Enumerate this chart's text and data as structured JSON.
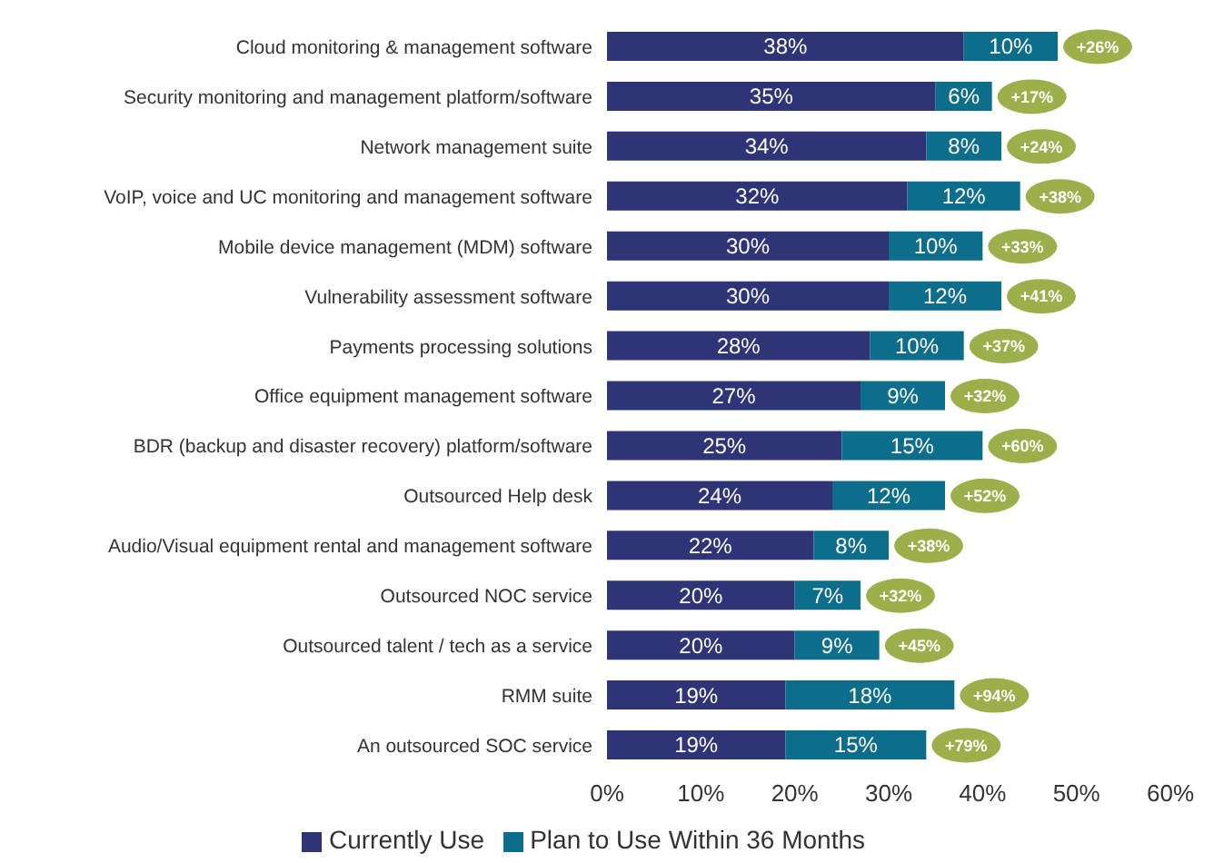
{
  "chart_data": {
    "type": "bar",
    "orientation": "horizontal",
    "stacked": true,
    "grid": false,
    "legend": "bottom",
    "categories": [
      "Cloud monitoring & management software",
      "Security monitoring and management platform/software",
      "Network management suite",
      "VoIP, voice and UC monitoring and management software",
      "Mobile device management (MDM) software",
      "Vulnerability assessment software",
      "Payments processing solutions",
      "Office equipment management software",
      "BDR (backup and disaster recovery) platform/software",
      "Outsourced Help desk",
      "Audio/Visual equipment rental and management software",
      "Outsourced NOC service",
      "Outsourced talent / tech as a service",
      "RMM suite",
      "An outsourced SOC service"
    ],
    "series": [
      {
        "name": "Currently Use",
        "color": "#2e3475",
        "values": [
          38,
          35,
          34,
          32,
          30,
          30,
          28,
          27,
          25,
          24,
          22,
          20,
          20,
          19,
          19
        ],
        "value_labels": [
          "38%",
          "35%",
          "34%",
          "32%",
          "30%",
          "30%",
          "28%",
          "27%",
          "25%",
          "24%",
          "22%",
          "20%",
          "20%",
          "19%",
          "19%"
        ]
      },
      {
        "name": "Plan to Use Within 36 Months",
        "color": "#0d6e8c",
        "values": [
          10,
          6,
          8,
          12,
          10,
          12,
          10,
          9,
          15,
          12,
          8,
          7,
          9,
          18,
          15
        ],
        "value_labels": [
          "10%",
          "6%",
          "8%",
          "12%",
          "10%",
          "12%",
          "10%",
          "9%",
          "15%",
          "12%",
          "8%",
          "7%",
          "9%",
          "18%",
          "15%"
        ]
      }
    ],
    "xlim": [
      0,
      60
    ],
    "xticks": [
      {
        "value": 0,
        "label": "0%"
      },
      {
        "value": 10,
        "label": "10%"
      },
      {
        "value": 20,
        "label": "20%"
      },
      {
        "value": 30,
        "label": "30%"
      },
      {
        "value": 40,
        "label": "40%"
      },
      {
        "value": 50,
        "label": "50%"
      },
      {
        "value": 60,
        "label": "60%"
      }
    ],
    "annotations": [
      {
        "text": "+26%",
        "x": 48,
        "y": "Cloud monitoring & management software"
      },
      {
        "text": "+17%",
        "x": 41,
        "y": "Security monitoring and management platform/software"
      },
      {
        "text": "+24%",
        "x": 42,
        "y": "Network management suite"
      },
      {
        "text": "+38%",
        "x": 44,
        "y": "VoIP, voice and UC monitoring and management software"
      },
      {
        "text": "+33%",
        "x": 40,
        "y": "Mobile device management (MDM) software"
      },
      {
        "text": "+41%",
        "x": 42,
        "y": "Vulnerability assessment software"
      },
      {
        "text": "+37%",
        "x": 38,
        "y": "Payments processing solutions"
      },
      {
        "text": "+32%",
        "x": 36,
        "y": "Office equipment management software"
      },
      {
        "text": "+60%",
        "x": 40,
        "y": "BDR (backup and disaster recovery) platform/software"
      },
      {
        "text": "+52%",
        "x": 36,
        "y": "Outsourced Help desk"
      },
      {
        "text": "+38%",
        "x": 30,
        "y": "Audio/Visual equipment rental and management software"
      },
      {
        "text": "+32%",
        "x": 27,
        "y": "Outsourced NOC service"
      },
      {
        "text": "+45%",
        "x": 29,
        "y": "Outsourced talent / tech as a service"
      },
      {
        "text": "+94%",
        "x": 37,
        "y": "RMM suite"
      },
      {
        "text": "+79%",
        "x": 34,
        "y": "An outsourced SOC service"
      }
    ]
  }
}
